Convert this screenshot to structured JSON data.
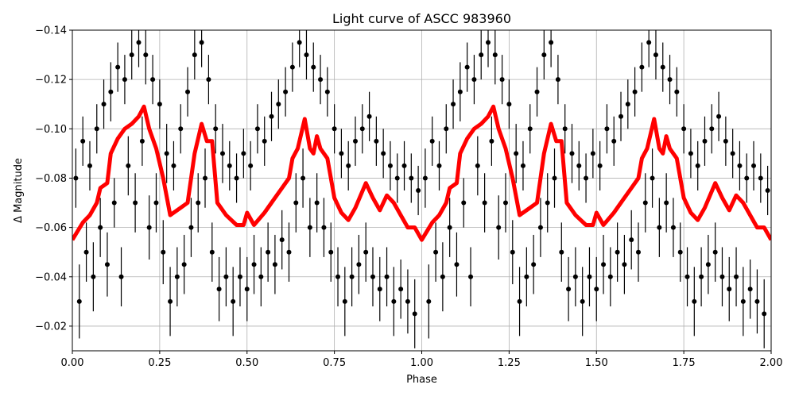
{
  "chart_data": {
    "type": "scatter",
    "title": "Light curve of ASCC 983960",
    "xlabel": "Phase",
    "ylabel": "Δ Magnitude",
    "xlim": [
      0,
      2
    ],
    "ylim": [
      -0.14,
      -0.01
    ],
    "y_inverted": true,
    "grid": true,
    "x_ticks": [
      "0.00",
      "0.25",
      "0.50",
      "0.75",
      "1.00",
      "1.25",
      "1.50",
      "1.75",
      "2.00"
    ],
    "x_tick_values": [
      0,
      0.25,
      0.5,
      0.75,
      1,
      1.25,
      1.5,
      1.75,
      2
    ],
    "y_ticks": [
      "−0.14",
      "−0.12",
      "−0.10",
      "−0.08",
      "−0.06",
      "−0.04",
      "−0.02"
    ],
    "y_tick_values": [
      -0.14,
      -0.12,
      -0.1,
      -0.08,
      -0.06,
      -0.04,
      -0.02
    ],
    "colors": {
      "points": "#000000",
      "model": "#ff0000",
      "grid": "#b0b0b0"
    },
    "phase_cycles_shown": 2,
    "observations": {
      "columns": [
        "phase",
        "magnitude",
        "error"
      ],
      "rows": [
        [
          0.01,
          -0.08,
          0.012
        ],
        [
          0.02,
          -0.03,
          0.015
        ],
        [
          0.03,
          -0.095,
          0.01
        ],
        [
          0.04,
          -0.05,
          0.012
        ],
        [
          0.05,
          -0.085,
          0.01
        ],
        [
          0.06,
          -0.04,
          0.014
        ],
        [
          0.07,
          -0.1,
          0.01
        ],
        [
          0.08,
          -0.06,
          0.012
        ],
        [
          0.09,
          -0.11,
          0.01
        ],
        [
          0.1,
          -0.045,
          0.013
        ],
        [
          0.11,
          -0.115,
          0.012
        ],
        [
          0.12,
          -0.07,
          0.01
        ],
        [
          0.13,
          -0.125,
          0.01
        ],
        [
          0.14,
          -0.04,
          0.012
        ],
        [
          0.15,
          -0.12,
          0.01
        ],
        [
          0.16,
          -0.085,
          0.012
        ],
        [
          0.17,
          -0.13,
          0.01
        ],
        [
          0.18,
          -0.07,
          0.012
        ],
        [
          0.19,
          -0.135,
          0.01
        ],
        [
          0.2,
          -0.095,
          0.01
        ],
        [
          0.21,
          -0.13,
          0.012
        ],
        [
          0.22,
          -0.06,
          0.013
        ],
        [
          0.23,
          -0.12,
          0.01
        ],
        [
          0.24,
          -0.07,
          0.012
        ],
        [
          0.25,
          -0.11,
          0.01
        ],
        [
          0.26,
          -0.05,
          0.013
        ],
        [
          0.27,
          -0.09,
          0.012
        ],
        [
          0.28,
          -0.03,
          0.014
        ],
        [
          0.29,
          -0.085,
          0.01
        ],
        [
          0.3,
          -0.04,
          0.012
        ],
        [
          0.31,
          -0.1,
          0.01
        ],
        [
          0.32,
          -0.045,
          0.012
        ],
        [
          0.33,
          -0.115,
          0.01
        ],
        [
          0.34,
          -0.06,
          0.012
        ],
        [
          0.35,
          -0.13,
          0.01
        ],
        [
          0.36,
          -0.07,
          0.012
        ],
        [
          0.37,
          -0.135,
          0.01
        ],
        [
          0.38,
          -0.08,
          0.012
        ],
        [
          0.39,
          -0.12,
          0.01
        ],
        [
          0.4,
          -0.05,
          0.012
        ],
        [
          0.41,
          -0.1,
          0.01
        ],
        [
          0.42,
          -0.035,
          0.013
        ],
        [
          0.43,
          -0.09,
          0.012
        ],
        [
          0.44,
          -0.04,
          0.012
        ],
        [
          0.45,
          -0.085,
          0.01
        ],
        [
          0.46,
          -0.03,
          0.014
        ],
        [
          0.47,
          -0.08,
          0.01
        ],
        [
          0.48,
          -0.04,
          0.012
        ],
        [
          0.49,
          -0.09,
          0.01
        ],
        [
          0.5,
          -0.035,
          0.013
        ],
        [
          0.51,
          -0.085,
          0.01
        ],
        [
          0.52,
          -0.045,
          0.012
        ],
        [
          0.53,
          -0.1,
          0.01
        ],
        [
          0.54,
          -0.04,
          0.012
        ],
        [
          0.55,
          -0.095,
          0.01
        ],
        [
          0.56,
          -0.05,
          0.012
        ],
        [
          0.57,
          -0.105,
          0.01
        ],
        [
          0.58,
          -0.045,
          0.012
        ],
        [
          0.59,
          -0.11,
          0.01
        ],
        [
          0.6,
          -0.055,
          0.012
        ],
        [
          0.61,
          -0.115,
          0.01
        ],
        [
          0.62,
          -0.05,
          0.012
        ],
        [
          0.63,
          -0.125,
          0.01
        ],
        [
          0.64,
          -0.07,
          0.012
        ],
        [
          0.65,
          -0.135,
          0.01
        ],
        [
          0.66,
          -0.08,
          0.012
        ],
        [
          0.67,
          -0.13,
          0.01
        ],
        [
          0.68,
          -0.06,
          0.012
        ],
        [
          0.69,
          -0.125,
          0.01
        ],
        [
          0.7,
          -0.07,
          0.012
        ],
        [
          0.71,
          -0.12,
          0.01
        ],
        [
          0.72,
          -0.06,
          0.012
        ],
        [
          0.73,
          -0.115,
          0.01
        ],
        [
          0.74,
          -0.05,
          0.012
        ],
        [
          0.75,
          -0.1,
          0.01
        ],
        [
          0.76,
          -0.04,
          0.012
        ],
        [
          0.77,
          -0.09,
          0.01
        ],
        [
          0.78,
          -0.03,
          0.014
        ],
        [
          0.79,
          -0.085,
          0.01
        ],
        [
          0.8,
          -0.04,
          0.012
        ],
        [
          0.81,
          -0.095,
          0.01
        ],
        [
          0.82,
          -0.045,
          0.012
        ],
        [
          0.83,
          -0.1,
          0.01
        ],
        [
          0.84,
          -0.05,
          0.012
        ],
        [
          0.85,
          -0.105,
          0.01
        ],
        [
          0.86,
          -0.04,
          0.012
        ],
        [
          0.87,
          -0.095,
          0.01
        ],
        [
          0.88,
          -0.035,
          0.013
        ],
        [
          0.89,
          -0.09,
          0.01
        ],
        [
          0.9,
          -0.04,
          0.012
        ],
        [
          0.91,
          -0.085,
          0.01
        ],
        [
          0.92,
          -0.03,
          0.014
        ],
        [
          0.93,
          -0.08,
          0.01
        ],
        [
          0.94,
          -0.035,
          0.012
        ],
        [
          0.95,
          -0.085,
          0.01
        ],
        [
          0.96,
          -0.03,
          0.013
        ],
        [
          0.97,
          -0.08,
          0.01
        ],
        [
          0.98,
          -0.025,
          0.014
        ],
        [
          0.99,
          -0.075,
          0.01
        ]
      ]
    },
    "model": {
      "columns": [
        "phase",
        "magnitude"
      ],
      "rows": [
        [
          0.0,
          -0.055
        ],
        [
          0.03,
          -0.062
        ],
        [
          0.05,
          -0.065
        ],
        [
          0.07,
          -0.07
        ],
        [
          0.08,
          -0.076
        ],
        [
          0.1,
          -0.078
        ],
        [
          0.11,
          -0.09
        ],
        [
          0.13,
          -0.096
        ],
        [
          0.15,
          -0.1
        ],
        [
          0.17,
          -0.102
        ],
        [
          0.19,
          -0.105
        ],
        [
          0.205,
          -0.109
        ],
        [
          0.22,
          -0.1
        ],
        [
          0.24,
          -0.092
        ],
        [
          0.26,
          -0.08
        ],
        [
          0.28,
          -0.065
        ],
        [
          0.31,
          -0.068
        ],
        [
          0.33,
          -0.07
        ],
        [
          0.35,
          -0.09
        ],
        [
          0.37,
          -0.102
        ],
        [
          0.385,
          -0.095
        ],
        [
          0.4,
          -0.095
        ],
        [
          0.415,
          -0.07
        ],
        [
          0.44,
          -0.065
        ],
        [
          0.47,
          -0.061
        ],
        [
          0.49,
          -0.061
        ],
        [
          0.5,
          -0.066
        ],
        [
          0.52,
          -0.061
        ],
        [
          0.55,
          -0.066
        ],
        [
          0.57,
          -0.07
        ],
        [
          0.6,
          -0.076
        ],
        [
          0.62,
          -0.08
        ],
        [
          0.63,
          -0.088
        ],
        [
          0.645,
          -0.092
        ],
        [
          0.665,
          -0.104
        ],
        [
          0.68,
          -0.092
        ],
        [
          0.69,
          -0.09
        ],
        [
          0.7,
          -0.097
        ],
        [
          0.71,
          -0.092
        ],
        [
          0.73,
          -0.088
        ],
        [
          0.75,
          -0.072
        ],
        [
          0.77,
          -0.066
        ],
        [
          0.79,
          -0.063
        ],
        [
          0.81,
          -0.068
        ],
        [
          0.84,
          -0.078
        ],
        [
          0.86,
          -0.072
        ],
        [
          0.88,
          -0.067
        ],
        [
          0.9,
          -0.073
        ],
        [
          0.92,
          -0.07
        ],
        [
          0.94,
          -0.065
        ],
        [
          0.96,
          -0.06
        ],
        [
          0.98,
          -0.06
        ],
        [
          1.0,
          -0.055
        ]
      ]
    }
  }
}
